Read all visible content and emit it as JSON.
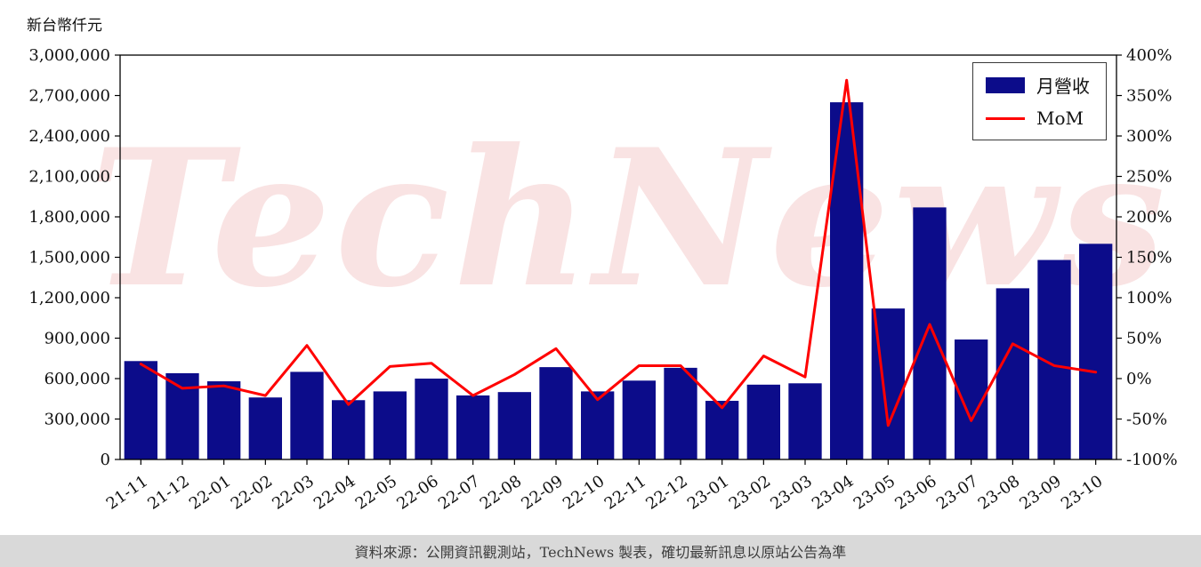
{
  "page": {
    "unit_label": "新台幣仟元",
    "watermark": "TechNews",
    "footer": "資料來源：公開資訊觀測站，TechNews 製表，確切最新訊息以原站公告為準"
  },
  "chart_data": {
    "type": "bar",
    "title": "",
    "categories": [
      "21-11",
      "21-12",
      "22-01",
      "22-02",
      "22-03",
      "22-04",
      "22-05",
      "22-06",
      "22-07",
      "22-08",
      "22-09",
      "22-10",
      "22-11",
      "22-12",
      "23-01",
      "23-02",
      "23-03",
      "23-04",
      "23-05",
      "23-06",
      "23-07",
      "23-08",
      "23-09",
      "23-10"
    ],
    "series": [
      {
        "name": "月營收",
        "type": "bar",
        "axis": "left",
        "color": "#0c0c8a",
        "values": [
          730000,
          640000,
          580000,
          460000,
          650000,
          440000,
          505000,
          600000,
          475000,
          500000,
          685000,
          505000,
          585000,
          680000,
          435000,
          555000,
          565000,
          2650000,
          1120000,
          1870000,
          890000,
          1270000,
          1480000,
          1600000
        ]
      },
      {
        "name": "MoM",
        "type": "line",
        "axis": "right",
        "color": "#ff0000",
        "values": [
          18,
          -12,
          -9,
          -21,
          41,
          -32,
          15,
          19,
          -21,
          5,
          37,
          -26,
          16,
          16,
          -36,
          28,
          2,
          369,
          -58,
          67,
          -52,
          43,
          16,
          8
        ]
      }
    ],
    "left_axis": {
      "min": 0,
      "max": 3000000,
      "tick_step": 300000,
      "tick_labels": [
        "0",
        "300,000",
        "600,000",
        "900,000",
        "1,200,000",
        "1,500,000",
        "1,800,000",
        "2,100,000",
        "2,400,000",
        "2,700,000",
        "3,000,000"
      ]
    },
    "right_axis": {
      "min": -100,
      "max": 400,
      "tick_step": 50,
      "tick_labels": [
        "-100%",
        "-50%",
        "0%",
        "50%",
        "100%",
        "150%",
        "200%",
        "250%",
        "300%",
        "350%",
        "400%"
      ]
    },
    "legend": {
      "position": "top-right",
      "entries": [
        "月營收",
        "MoM"
      ]
    },
    "grid": "off"
  }
}
